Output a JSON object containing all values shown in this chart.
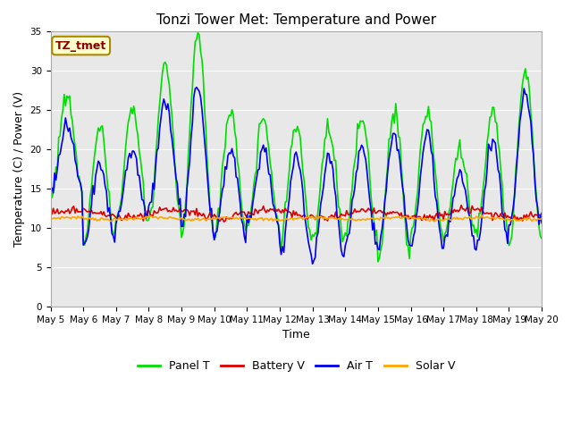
{
  "title": "Tonzi Tower Met: Temperature and Power",
  "xlabel": "Time",
  "ylabel": "Temperature (C) / Power (V)",
  "ylim": [
    0,
    35
  ],
  "yticks": [
    0,
    5,
    10,
    15,
    20,
    25,
    30,
    35
  ],
  "x_tick_labels": [
    "May 5",
    "May 6",
    "May 7",
    "May 8",
    "May 9",
    "May 10",
    "May 11",
    "May 12",
    "May 13",
    "May 14",
    "May 15",
    "May 16",
    "May 17",
    "May 18",
    "May 19",
    "May 20"
  ],
  "annotation_text": "TZ_tmet",
  "annotation_color": "#8B0000",
  "annotation_bg": "#FFFFCC",
  "annotation_border": "#AA8800",
  "bg_color": "#E8E8E8",
  "plot_bg": "#DCDCDC",
  "legend_entries": [
    "Panel T",
    "Battery V",
    "Air T",
    "Solar V"
  ],
  "legend_colors": [
    "#00DD00",
    "#DD0000",
    "#0000EE",
    "#FFA500"
  ],
  "grid_color": "#FFFFFF",
  "title_fontsize": 11,
  "tick_fontsize": 7.5,
  "label_fontsize": 9
}
